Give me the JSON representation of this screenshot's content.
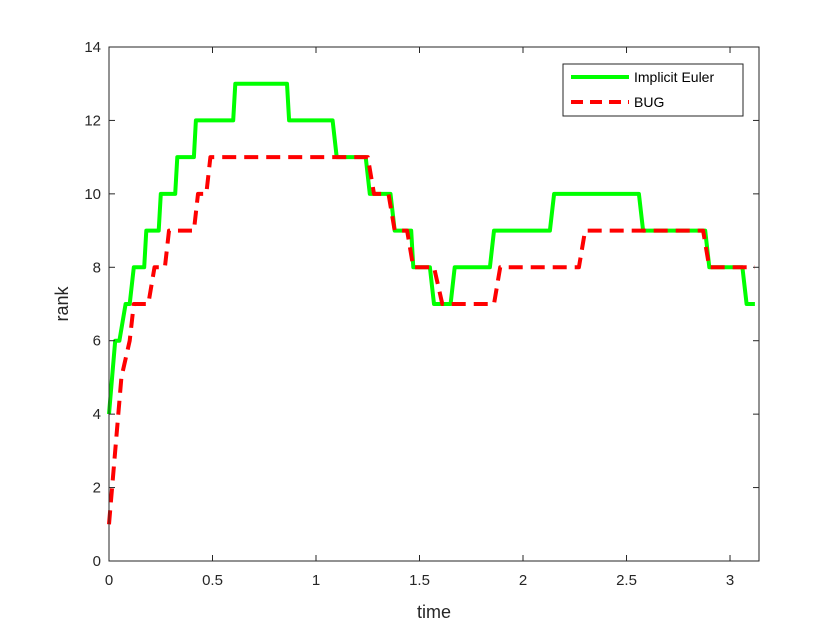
{
  "chart_data": {
    "type": "line",
    "title": "",
    "xlabel": "time",
    "ylabel": "rank",
    "xlim": [
      0,
      3.14
    ],
    "ylim": [
      0,
      14
    ],
    "xticks": [
      0,
      0.5,
      1,
      1.5,
      2,
      2.5,
      3
    ],
    "xtick_labels": [
      "0",
      "0.5",
      "1",
      "1.5",
      "2",
      "2.5",
      "3"
    ],
    "yticks": [
      0,
      2,
      4,
      6,
      8,
      10,
      12,
      14
    ],
    "ytick_labels": [
      "0",
      "2",
      "4",
      "6",
      "8",
      "10",
      "12",
      "14"
    ],
    "grid": false,
    "legend_position": "top-right",
    "series": [
      {
        "name": "Implicit Euler",
        "color": "#00ff00",
        "style": "solid",
        "x": [
          0.0,
          0.03,
          0.05,
          0.08,
          0.1,
          0.12,
          0.14,
          0.17,
          0.18,
          0.2,
          0.24,
          0.25,
          0.29,
          0.32,
          0.33,
          0.41,
          0.42,
          0.6,
          0.61,
          0.86,
          0.87,
          1.08,
          1.1,
          1.24,
          1.26,
          1.36,
          1.38,
          1.46,
          1.47,
          1.55,
          1.57,
          1.65,
          1.67,
          1.84,
          1.86,
          2.13,
          2.15,
          2.56,
          2.58,
          2.88,
          2.9,
          3.06,
          3.08,
          3.12
        ],
        "y": [
          4,
          6,
          6,
          7,
          7,
          8,
          8,
          8,
          9,
          9,
          9,
          10,
          10,
          10,
          11,
          11,
          12,
          12,
          13,
          13,
          12,
          12,
          11,
          11,
          10,
          10,
          9,
          9,
          8,
          8,
          7,
          7,
          8,
          8,
          9,
          9,
          10,
          10,
          9,
          9,
          8,
          8,
          7,
          7
        ]
      },
      {
        "name": "BUG",
        "color": "#ff0000",
        "style": "dashed",
        "x": [
          0.0,
          0.03,
          0.06,
          0.1,
          0.12,
          0.19,
          0.22,
          0.27,
          0.29,
          0.41,
          0.43,
          0.47,
          0.49,
          1.25,
          1.28,
          1.35,
          1.38,
          1.44,
          1.47,
          1.55,
          1.57,
          1.61,
          1.64,
          1.86,
          1.89,
          2.27,
          2.3,
          2.87,
          2.9,
          3.12
        ],
        "y": [
          1,
          3,
          5,
          6,
          7,
          7,
          8,
          8,
          9,
          9,
          10,
          10,
          11,
          11,
          10,
          10,
          9,
          9,
          8,
          8,
          8,
          7,
          7,
          7,
          8,
          8,
          9,
          9,
          8,
          8
        ]
      }
    ]
  }
}
